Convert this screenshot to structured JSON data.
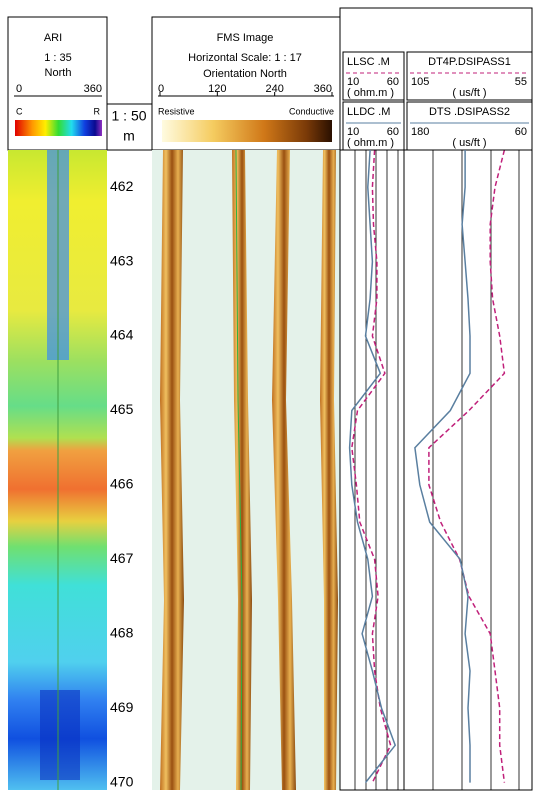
{
  "ari_header": {
    "title": "ARI",
    "scale": "1 : 35",
    "orientation": "North",
    "range": [
      0,
      360
    ],
    "color_left": "C",
    "color_right": "R"
  },
  "depth_header": {
    "scale": "1 : 50",
    "unit": "m"
  },
  "fms_header": {
    "title": "FMS Image",
    "scale": "Horizontal Scale: 1 : 17",
    "orientation": "Orientation North",
    "ticks": [
      0,
      120,
      240,
      360
    ],
    "color_left": "Resistive",
    "color_right": "Conductive"
  },
  "depth_track": {
    "ylim": [
      461.5,
      470.1
    ],
    "ticks": [
      462,
      463,
      464,
      465,
      466,
      467,
      468,
      469,
      470
    ]
  },
  "log_tracks": {
    "depths": [
      461.5,
      462,
      462.5,
      463,
      463.5,
      464,
      464.5,
      465,
      465.5,
      466,
      466.5,
      467,
      467.5,
      468,
      468.5,
      469,
      469.5,
      470
    ],
    "tracks": [
      {
        "curves": [
          {
            "name": "LLSC .M",
            "unit": "( ohm.m )",
            "xlim": [
              10,
              60
            ],
            "color": "#c0207a",
            "dashed": true,
            "values": [
              36,
              34,
              35,
              38,
              38,
              34,
              45,
              21,
              16,
              20,
              23,
              36,
              39,
              34,
              36,
              41,
              50,
              34
            ]
          },
          {
            "name": "LLDC .M",
            "unit": "( ohm.m )",
            "xlim": [
              10,
              60
            ],
            "color": "#5a7fa0",
            "dashed": false,
            "values": [
              32,
              30,
              32,
              34,
              32,
              28,
              41,
              16,
              14,
              16,
              21,
              30,
              34,
              25,
              34,
              42,
              54,
              28
            ]
          }
        ]
      },
      {
        "curves": [
          {
            "name": "DT4P.DSIPASS1",
            "unit": "( us/ft )",
            "xlim": [
              105,
              55
            ],
            "color": "#c0207a",
            "dashed": true,
            "values": [
              65,
              69,
              71,
              71,
              70,
              67,
              65,
              80,
              97,
              97,
              92,
              84,
              80,
              71,
              69,
              67,
              67,
              65
            ]
          },
          {
            "name": "DTS .DSIPASS2",
            "unit": "( us/ft )",
            "xlim": [
              180,
              60
            ],
            "color": "#5a7fa0",
            "dashed": false,
            "values": [
              124,
              124,
              127,
              124,
              121,
              119,
              119,
              139,
              175,
              170,
              160,
              129,
              121,
              124,
              119,
              121,
              119,
              119
            ]
          }
        ]
      }
    ]
  }
}
